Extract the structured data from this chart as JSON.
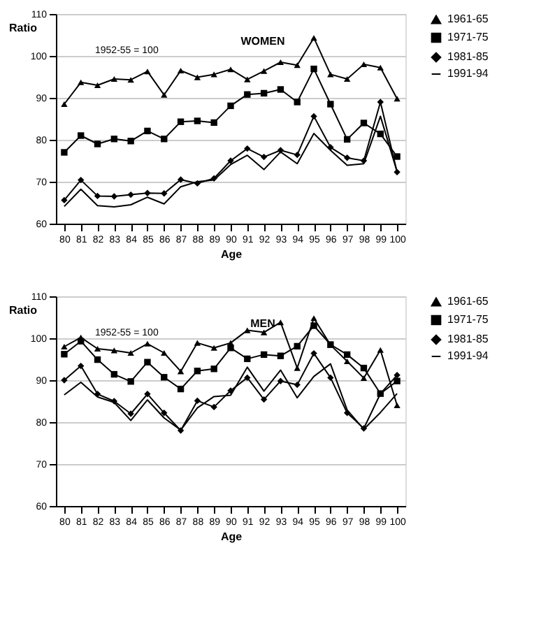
{
  "chart_data": [
    {
      "type": "line",
      "title": "WOMEN",
      "xlabel": "Age",
      "ylabel": "Ratio",
      "annotations": [
        "1952-55 = 100"
      ],
      "categories": [
        "80",
        "81",
        "82",
        "83",
        "84",
        "85",
        "86",
        "87",
        "88",
        "89",
        "90",
        "91",
        "92",
        "93",
        "94",
        "95",
        "96",
        "97",
        "98",
        "99",
        "100"
      ],
      "ylim": [
        60,
        110
      ],
      "yticks": [
        60,
        70,
        80,
        90,
        100,
        110
      ],
      "grid": "y",
      "legend": "right",
      "series": [
        {
          "name": "1961-65",
          "color": "#000000",
          "marker": "triangle",
          "values": [
            88.5,
            93.7,
            93,
            94.5,
            94.3,
            96.3,
            90.7,
            96.5,
            94.9,
            95.6,
            96.8,
            94.4,
            96.4,
            98.5,
            97.8,
            104.3,
            95.6,
            94.5,
            98,
            97.2,
            89.8
          ]
        },
        {
          "name": "1971-75",
          "color": "#000000",
          "marker": "square",
          "values": [
            77,
            81,
            79,
            80.2,
            79.7,
            82.1,
            80.2,
            84.3,
            84.5,
            84.1,
            88.1,
            90.8,
            91.1,
            92,
            89,
            96.9,
            88.5,
            80.1,
            84,
            81.4,
            76
          ]
        },
        {
          "name": "1981-85",
          "color": "#000000",
          "marker": "diamond",
          "values": [
            65.6,
            70.4,
            66.6,
            66.5,
            66.9,
            67.3,
            67.2,
            70.5,
            69.6,
            70.8,
            75,
            77.9,
            75.9,
            77.5,
            76.4,
            85.6,
            78.2,
            75.7,
            75,
            89,
            72.3
          ]
        },
        {
          "name": "1991-94",
          "color": "#000000",
          "marker": "none",
          "values": [
            64.1,
            68.2,
            64.3,
            64,
            64.5,
            66.3,
            64.7,
            68.8,
            70,
            70.4,
            74.1,
            76.3,
            72.9,
            77.1,
            74.3,
            81.5,
            77.5,
            73.9,
            74.3,
            85.6,
            72.4
          ]
        }
      ]
    },
    {
      "type": "line",
      "title": "MEN",
      "xlabel": "Age",
      "ylabel": "Ratio",
      "annotations": [
        "1952-55 = 100"
      ],
      "categories": [
        "80",
        "81",
        "82",
        "83",
        "84",
        "85",
        "86",
        "87",
        "88",
        "89",
        "90",
        "91",
        "92",
        "93",
        "94",
        "95",
        "96",
        "97",
        "98",
        "99",
        "100"
      ],
      "ylim": [
        60,
        110
      ],
      "yticks": [
        60,
        70,
        80,
        90,
        100,
        110
      ],
      "grid": "y",
      "legend": "right",
      "series": [
        {
          "name": "1961-65",
          "color": "#000000",
          "marker": "triangle",
          "values": [
            98,
            100.2,
            97.5,
            97.1,
            96.5,
            98.7,
            96.5,
            92.1,
            98.9,
            97.7,
            98.9,
            101.9,
            101.4,
            103.8,
            92.9,
            104.8,
            98.4,
            94.5,
            90.5,
            97.2,
            84
          ]
        },
        {
          "name": "1971-75",
          "color": "#000000",
          "marker": "square",
          "values": [
            96.2,
            99.3,
            94.9,
            91.4,
            89.7,
            94.3,
            90.7,
            87.9,
            92.2,
            92.7,
            97.7,
            95.1,
            96.1,
            95.8,
            98.1,
            103,
            98.5,
            96.1,
            92.9,
            86.8,
            89.8
          ]
        },
        {
          "name": "1981-85",
          "color": "#000000",
          "marker": "diamond",
          "values": [
            90,
            93.4,
            86.7,
            85,
            82,
            86.7,
            82.2,
            78,
            85.1,
            83.6,
            87.5,
            90.6,
            85.4,
            89.8,
            88.9,
            96.4,
            90.6,
            82.2,
            78.5,
            86.8,
            91.2
          ]
        },
        {
          "name": "1991-94",
          "color": "#000000",
          "marker": "none",
          "values": [
            86.5,
            89.5,
            86,
            84.7,
            80.4,
            85.3,
            81,
            78.1,
            83.4,
            86.1,
            86.4,
            93.1,
            87.4,
            92.4,
            85.8,
            90.9,
            93.9,
            82.9,
            78.3,
            82.3,
            86.8
          ]
        }
      ]
    }
  ]
}
